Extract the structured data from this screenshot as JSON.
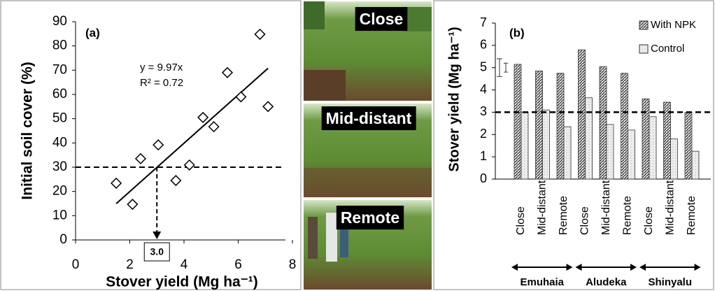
{
  "chart_data": [
    {
      "type": "scatter",
      "panel_label": "(a)",
      "x_label": "Stover yield (Mg ha⁻¹)",
      "y_label": "Initial soil cover (%)",
      "annotations": [
        "y = 9.97x",
        "R² = 0.72"
      ],
      "series": [
        {
          "color": "#000000",
          "x": [
            1.5,
            2.1,
            2.4,
            3.05,
            3.7,
            4.2,
            4.7,
            5.1,
            5.6,
            6.1,
            6.8,
            7.1
          ],
          "values": [
            23.4,
            14.7,
            33.5,
            39.2,
            24.5,
            30.9,
            50.5,
            46.7,
            69,
            59,
            84.8,
            55
          ]
        }
      ],
      "trend_line": {
        "x": [
          1.5,
          7.1
        ],
        "values": [
          14.96,
          70.79
        ]
      },
      "reference": {
        "y": 30,
        "x": {
          "value": 3,
          "label": "3.0"
        }
      },
      "xlim": [
        0,
        8
      ],
      "xticks": [
        0,
        2,
        4,
        6,
        8
      ],
      "ylim": [
        0,
        90
      ],
      "yticks": [
        0,
        10,
        20,
        30,
        40,
        50,
        60,
        70,
        80,
        90
      ],
      "grid": false
    },
    {
      "type": "bar",
      "panel_label": "(b)",
      "y_label": "Stover yield (Mg ha⁻¹)",
      "categories": [
        "Close",
        "Mid-distant",
        "Remote",
        "Close",
        "Mid-distant",
        "Remote",
        "Close",
        "Mid-distant",
        "Remote"
      ],
      "groups": [
        "Emuhaia",
        "Aludeka",
        "Shinyalu"
      ],
      "series": [
        {
          "name": "With NPK",
          "color": "#404040",
          "fill_style": "hatch",
          "values": [
            5.15,
            4.85,
            4.75,
            5.8,
            5.05,
            4.75,
            3.6,
            3.45,
            3.0
          ]
        },
        {
          "name": "Control",
          "color": "#bfbfbf",
          "fill_style": "dots",
          "values": [
            3.0,
            3.1,
            2.35,
            3.65,
            2.45,
            2.2,
            2.8,
            1.8,
            1.25
          ]
        }
      ],
      "error_bars": [
        [
          4.6,
          5.4
        ],
        [
          4.8,
          5.2
        ]
      ],
      "reference": {
        "y": 3
      },
      "ylim": [
        0,
        7
      ],
      "yticks": [
        0,
        1,
        2,
        3,
        4,
        5,
        6,
        7
      ],
      "grid": false,
      "legend": "top-right"
    }
  ],
  "photo_labels": [
    "Close",
    "Mid-distant",
    "Remote"
  ]
}
